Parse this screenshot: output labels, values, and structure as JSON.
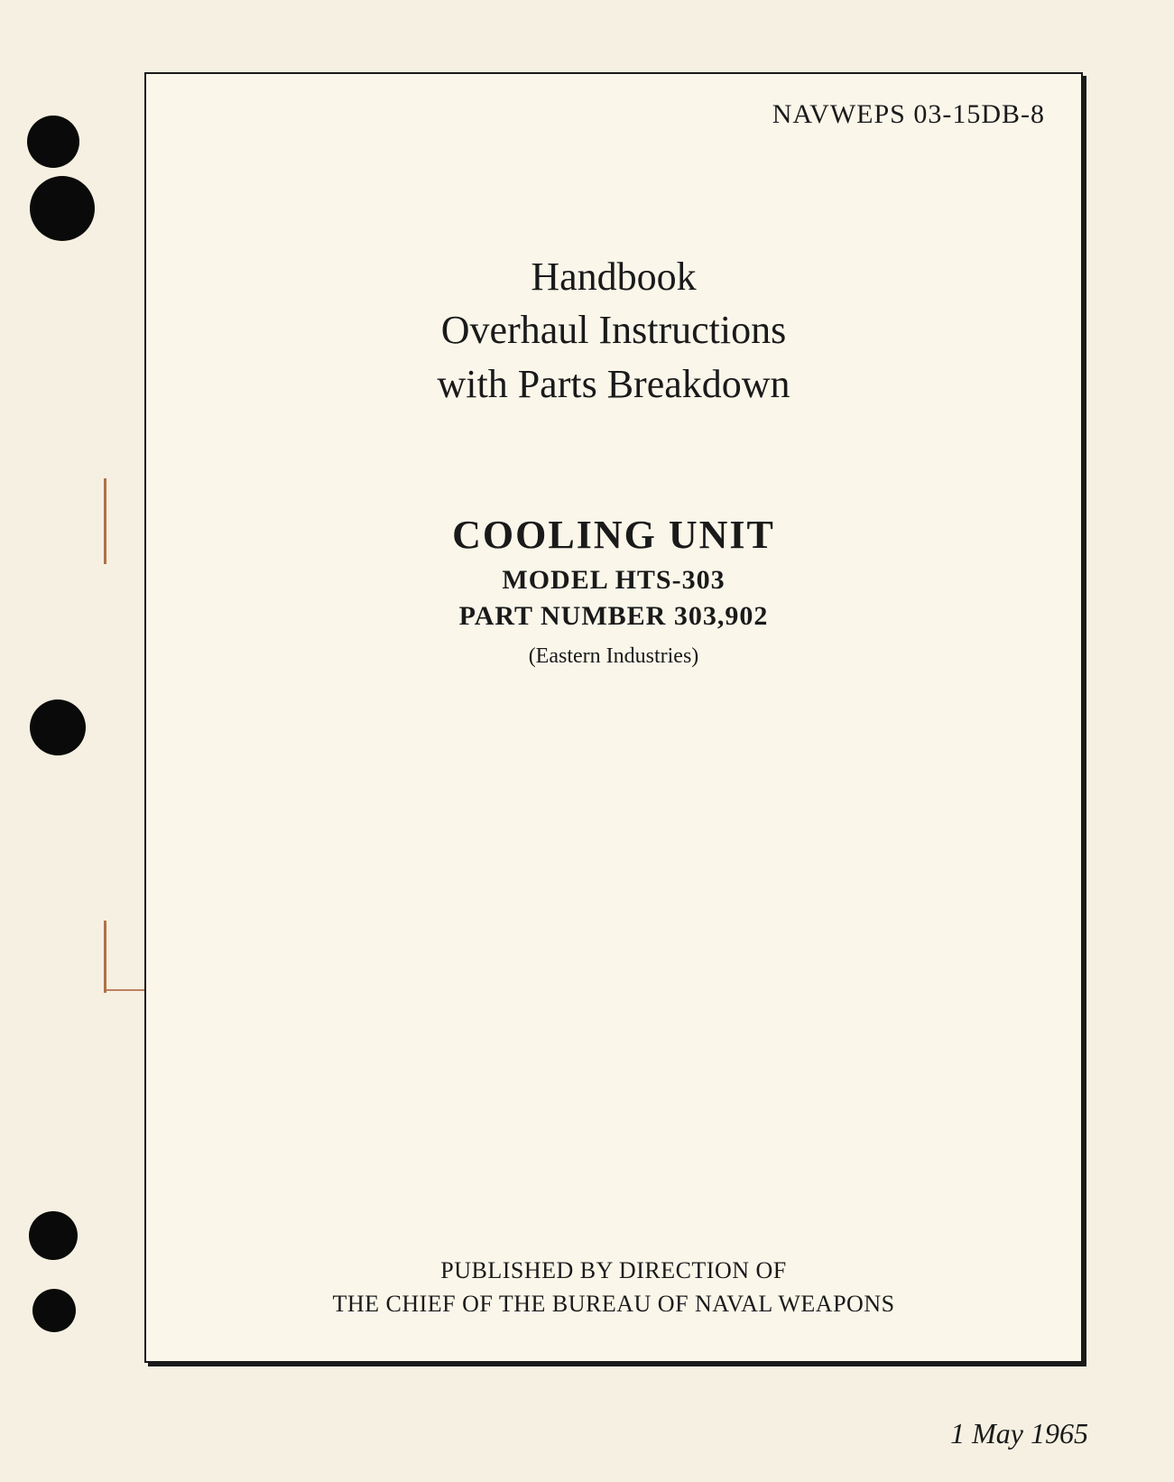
{
  "doc_number": "NAVWEPS 03-15DB-8",
  "title": {
    "line1": "Handbook",
    "line2": "Overhaul Instructions",
    "line3": "with Parts Breakdown"
  },
  "subject": {
    "title": "COOLING UNIT",
    "model": "MODEL HTS-303",
    "part_number": "PART NUMBER 303,902",
    "manufacturer": "(Eastern Industries)"
  },
  "publisher": {
    "line1": "PUBLISHED BY DIRECTION OF",
    "line2": "THE CHIEF OF THE BUREAU OF NAVAL WEAPONS"
  },
  "date": "1 May 1965",
  "styling": {
    "page_bg": "#f5f0e1",
    "content_bg": "#faf6ea",
    "text_color": "#1a1a1a",
    "border_color": "#1a1a1a",
    "hole_color": "#0a0a0a",
    "tear_color": "#b0704a",
    "font_family": "Times New Roman",
    "doc_number_fontsize": 30,
    "title_fontsize": 44,
    "subject_title_fontsize": 44,
    "subject_detail_fontsize": 30,
    "manufacturer_fontsize": 24,
    "publisher_fontsize": 26,
    "date_fontsize": 32
  }
}
